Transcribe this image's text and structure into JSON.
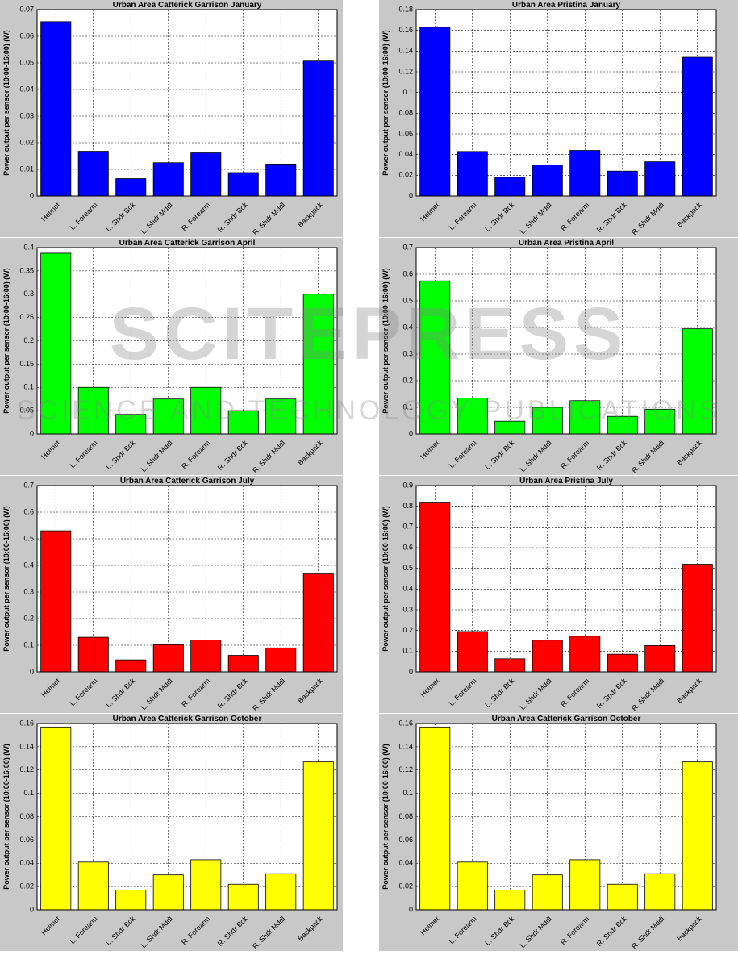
{
  "watermark": "SCITEPRESS",
  "watermark_subtitle": "SCIENCE AND TECHNOLOGY PUBLICATIONS",
  "chart_data": [
    {
      "type": "bar",
      "title": "Urban Area Catterick Garrison January",
      "y_label": "Power output per sensor (10:00-16:00) (W)",
      "categories": [
        "Helmet",
        "L. Forearm",
        "L. Shdr Bck",
        "L. Shdr Mddl",
        "R. Forearm",
        "R. Shdr Bck",
        "R. Shdr Mddl",
        "Backpack"
      ],
      "values": [
        0.0655,
        0.0168,
        0.0065,
        0.0125,
        0.0162,
        0.0088,
        0.012,
        0.0507
      ],
      "color": "#0000ff",
      "ylim": [
        0,
        0.07
      ],
      "yticks": [
        0,
        0.01,
        0.02,
        0.03,
        0.04,
        0.05,
        0.06,
        0.07
      ],
      "grid": true
    },
    {
      "type": "bar",
      "title": "Urban Area Pristina January",
      "y_label": "Power output per sensor (10:00-16:00) (W)",
      "categories": [
        "Helmet",
        "L. Forearm",
        "L. Shdr Bck",
        "L. Shdr Mddl",
        "R. Forearm",
        "R. Shdr Bck",
        "R. Shdr Mddl",
        "Backpack"
      ],
      "values": [
        0.163,
        0.043,
        0.018,
        0.03,
        0.044,
        0.024,
        0.033,
        0.134
      ],
      "color": "#0000ff",
      "ylim": [
        0,
        0.18
      ],
      "yticks": [
        0,
        0.02,
        0.04,
        0.06,
        0.08,
        0.1,
        0.12,
        0.14,
        0.16,
        0.18
      ],
      "grid": true
    },
    {
      "type": "bar",
      "title": "Urban Area Catterick Garrison April",
      "y_label": "Power output per sensor (10:00-16:00) (W)",
      "categories": [
        "Helmet",
        "L. Forearm",
        "L. Shdr Bck",
        "L. Shdr Mddl",
        "R. Forearm",
        "R. Shdr Bck",
        "R. Shdr Mddl",
        "Backpack"
      ],
      "values": [
        0.388,
        0.1,
        0.042,
        0.075,
        0.1,
        0.05,
        0.075,
        0.3
      ],
      "color": "#00ff00",
      "ylim": [
        0,
        0.4
      ],
      "yticks": [
        0,
        0.05,
        0.1,
        0.15,
        0.2,
        0.25,
        0.3,
        0.35,
        0.4
      ],
      "grid": true
    },
    {
      "type": "bar",
      "title": "Urban Area Pristina April",
      "y_label": "Power output per sensor (10:00-16:00) (W)",
      "categories": [
        "Helmet",
        "L. Forearm",
        "L. Shdr Bck",
        "L. Shdr Mddl",
        "R. Forearm",
        "R. Shdr Bck",
        "R. Shdr Mddl",
        "Backpack"
      ],
      "values": [
        0.575,
        0.135,
        0.048,
        0.1,
        0.125,
        0.066,
        0.093,
        0.395
      ],
      "color": "#00ff00",
      "ylim": [
        0,
        0.7
      ],
      "yticks": [
        0,
        0.1,
        0.2,
        0.3,
        0.4,
        0.5,
        0.6,
        0.7
      ],
      "grid": true
    },
    {
      "type": "bar",
      "title": "Urban Area Catterick Garrison July",
      "y_label": "Power output per sensor (10:00-16:00) (W)",
      "categories": [
        "Helmet",
        "L. Forearm",
        "L. Shdr Bck",
        "L. Shdr Mddl",
        "R. Forearm",
        "R. Shdr Bck",
        "R. Shdr Mddl",
        "Backpack"
      ],
      "values": [
        0.53,
        0.13,
        0.045,
        0.102,
        0.12,
        0.062,
        0.09,
        0.368
      ],
      "color": "#ff0000",
      "ylim": [
        0,
        0.7
      ],
      "yticks": [
        0,
        0.1,
        0.2,
        0.3,
        0.4,
        0.5,
        0.6,
        0.7
      ],
      "grid": true
    },
    {
      "type": "bar",
      "title": "Urban Area Pristina July",
      "y_label": "Power output per sensor (10:00-16:00) (W)",
      "categories": [
        "Helmet",
        "L. Forearm",
        "L. Shdr Bck",
        "L. Shdr Mddl",
        "R. Forearm",
        "R. Shdr Bck",
        "R. Shdr Mddl",
        "Backpack"
      ],
      "values": [
        0.82,
        0.195,
        0.063,
        0.153,
        0.172,
        0.085,
        0.127,
        0.52
      ],
      "color": "#ff0000",
      "ylim": [
        0,
        0.9
      ],
      "yticks": [
        0,
        0.1,
        0.2,
        0.3,
        0.4,
        0.5,
        0.6,
        0.7,
        0.8,
        0.9
      ],
      "grid": true
    },
    {
      "type": "bar",
      "title": "Urban Area Catterick Garrison October",
      "y_label": "Power output per sensor (10:00-16:00) (W)",
      "categories": [
        "Helmet",
        "L. Forearm",
        "L. Shdr Bck",
        "L. Shdr Mddl",
        "R. Forearm",
        "R. Shdr Bck",
        "R. Shdr Mddl",
        "Backpack"
      ],
      "values": [
        0.157,
        0.041,
        0.017,
        0.03,
        0.043,
        0.022,
        0.031,
        0.127
      ],
      "color": "#ffff00",
      "ylim": [
        0,
        0.16
      ],
      "yticks": [
        0,
        0.02,
        0.04,
        0.06,
        0.08,
        0.1,
        0.12,
        0.14,
        0.16
      ],
      "grid": true
    },
    {
      "type": "bar",
      "title": "Urban Area Catterick Garrison October",
      "y_label": "Power output per sensor (10:00-16:00) (W)",
      "categories": [
        "Helmet",
        "L. Forearm",
        "L. Shdr Bck",
        "L. Shdr Mddl",
        "R. Forearm",
        "R. Shdr Bck",
        "R. Shdr Mddl",
        "Backpack"
      ],
      "values": [
        0.157,
        0.041,
        0.017,
        0.03,
        0.043,
        0.022,
        0.031,
        0.127
      ],
      "color": "#ffff00",
      "ylim": [
        0,
        0.16
      ],
      "yticks": [
        0,
        0.02,
        0.04,
        0.06,
        0.08,
        0.1,
        0.12,
        0.14,
        0.16
      ],
      "grid": true
    }
  ]
}
